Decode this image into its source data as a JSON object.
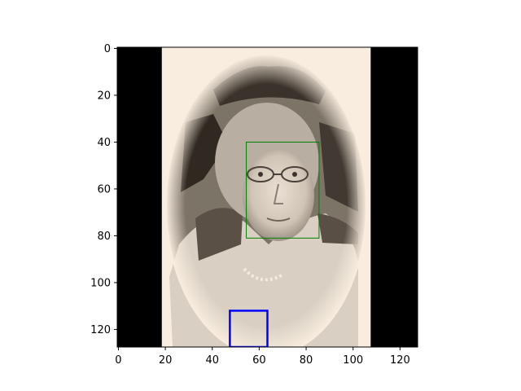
{
  "chart_data": {
    "type": "image",
    "image_shape": [
      128,
      128
    ],
    "xlim": [
      -0.5,
      127.5
    ],
    "ylim": [
      127.5,
      -0.5
    ],
    "xticks": [
      0,
      20,
      40,
      60,
      80,
      100,
      120
    ],
    "yticks": [
      0,
      20,
      40,
      60,
      80,
      100,
      120
    ],
    "xtick_labels": [
      "0",
      "20",
      "40",
      "60",
      "80",
      "100",
      "120"
    ],
    "ytick_labels": [
      "0",
      "20",
      "40",
      "60",
      "80",
      "100",
      "120"
    ],
    "image_content": {
      "left_black_band": [
        0,
        18.5
      ],
      "right_black_band": [
        107.5,
        128
      ],
      "vignette_bg": "#f8eddf",
      "portrait_oval_center": [
        67,
        68
      ],
      "portrait_oval_radii": [
        43,
        64
      ]
    },
    "rectangles": [
      {
        "label": "green-box",
        "x0": 54.5,
        "y0": 40,
        "x1": 85.5,
        "y1": 81,
        "color": "#008000",
        "linewidth": 1
      },
      {
        "label": "blue-box",
        "x0": 47.5,
        "y0": 112,
        "x1": 63.5,
        "y1": 127.5,
        "color": "#0000ff",
        "linewidth": 2.5
      }
    ]
  }
}
